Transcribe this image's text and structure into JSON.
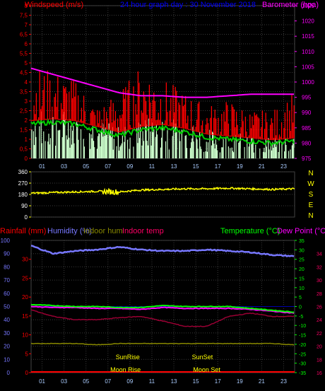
{
  "chart_data": [
    {
      "type": "line",
      "panel": "wind-barometer",
      "title": "24 hour graph day : 30 November 2018",
      "left_axis_label": "Windspeed (m/s)",
      "right_axis_label": "Barometer (hpa)",
      "x_ticks": [
        "01",
        "03",
        "05",
        "07",
        "09",
        "11",
        "13",
        "15",
        "17",
        "19",
        "21",
        "23"
      ],
      "left_ticks": [
        "0",
        "0,5",
        "1",
        "1,5",
        "2",
        "2,5",
        "3",
        "3,5",
        "4",
        "4,5",
        "5",
        "5,5",
        "6",
        "6,5",
        "7",
        "7,5",
        "8"
      ],
      "right_ticks": [
        "975",
        "980",
        "985",
        "990",
        "995",
        "1000",
        "1005",
        "1010",
        "1015",
        "1020",
        "1025"
      ],
      "left_range": [
        0,
        8
      ],
      "right_range": [
        975,
        1025
      ],
      "colors": {
        "gust": "#ff0000",
        "average": "#00cc00",
        "direction_speed": "#ccffcc",
        "barometer": "#ff00ff",
        "left_axis": "#ff0000",
        "right_axis": "#ff00ff",
        "title": "#0000ff"
      },
      "barometer": {
        "hours": [
          0,
          2,
          4,
          6,
          8,
          10,
          12,
          14,
          16,
          18,
          20,
          22,
          24
        ],
        "values": [
          1004.5,
          1002.5,
          1000.5,
          998.5,
          996.5,
          995.5,
          995.5,
          995,
          995,
          995.5,
          996,
          996,
          996
        ]
      },
      "average_wind": {
        "hours": [
          0,
          2,
          4,
          6,
          8,
          10,
          12,
          14,
          16,
          18,
          20,
          22,
          24
        ],
        "values": [
          1.8,
          1.9,
          1.8,
          1.5,
          1.2,
          1.5,
          1.6,
          1.4,
          1.1,
          1.0,
          0.9,
          0.8,
          0.9
        ]
      },
      "gust_wind": {
        "hours": [
          0,
          2,
          4,
          6,
          8,
          10,
          12,
          14,
          16,
          18,
          20,
          22,
          24
        ],
        "values": [
          3.5,
          3.3,
          3.0,
          2.0,
          2.5,
          3.5,
          3.0,
          2.5,
          2.0,
          2.2,
          1.8,
          1.8,
          2.5
        ]
      }
    },
    {
      "type": "line",
      "panel": "wind-direction",
      "left_ticks": [
        "0",
        "90",
        "180",
        "270",
        "360"
      ],
      "right_labels": [
        "N",
        "W",
        "S",
        "E",
        "N"
      ],
      "range": [
        0,
        360
      ],
      "color": "#ffff00",
      "direction": {
        "hours": [
          0,
          2,
          4,
          6,
          8,
          10,
          12,
          14,
          16,
          18,
          20,
          22,
          24
        ],
        "values": [
          190,
          195,
          200,
          205,
          200,
          215,
          220,
          225,
          225,
          230,
          225,
          220,
          225
        ]
      }
    },
    {
      "type": "line",
      "panel": "temperature-humidity-rain",
      "labels": {
        "rainfall": "Rainfall (mm)",
        "humidity": "Humidity (%)",
        "indoor_hum": "Indoor hum",
        "indoor_temp": "Indoor temp",
        "temperature": "Temperature (°C)",
        "dew_point": "Dew Point (°C)"
      },
      "x_ticks": [
        "01",
        "03",
        "05",
        "07",
        "09",
        "11",
        "13",
        "15",
        "17",
        "19",
        "21",
        "23"
      ],
      "humidity_ticks": [
        "0",
        "10",
        "20",
        "30",
        "40",
        "50",
        "60",
        "70",
        "80",
        "90",
        "100"
      ],
      "rain_ticks": [
        "0",
        "5",
        "10",
        "15",
        "20",
        "25",
        "30"
      ],
      "temp_ticks": [
        "-35",
        "-30",
        "-25",
        "-20",
        "-15",
        "-10",
        "-5",
        "0",
        "5",
        "10",
        "15",
        "20",
        "25",
        "30",
        "35"
      ],
      "indoor_temp_ticks": [
        "16",
        "18",
        "20",
        "22",
        "24",
        "26",
        "28",
        "30",
        "32",
        "34"
      ],
      "colors": {
        "rainfall": "#ff0000",
        "humidity": "#7777ff",
        "indoor_hum": "#888800",
        "indoor_temp": "#990033",
        "temperature": "#00ff00",
        "dew_point": "#ff00ff",
        "events": "#ffff00"
      },
      "humidity": {
        "hours": [
          0,
          2,
          4,
          6,
          8,
          10,
          12,
          14,
          16,
          18,
          20,
          22,
          24
        ],
        "values": [
          96,
          90,
          92,
          93,
          95,
          93,
          92,
          92,
          93,
          92,
          91,
          89,
          88
        ]
      },
      "temperature": {
        "hours": [
          0,
          2,
          4,
          6,
          8,
          10,
          12,
          14,
          16,
          18,
          20,
          22,
          24
        ],
        "values": [
          1,
          0.5,
          0,
          0,
          -0.5,
          -0.5,
          0.5,
          0,
          0,
          0,
          -1,
          -2,
          -3
        ]
      },
      "dew_point": {
        "hours": [
          0,
          2,
          4,
          6,
          8,
          10,
          12,
          14,
          16,
          18,
          20,
          22,
          24
        ],
        "values": [
          0,
          -0.5,
          -0.5,
          -1,
          -1,
          -1.5,
          -0.5,
          -1,
          -1,
          -1,
          -1.5,
          -2.5,
          -3.5
        ]
      },
      "indoor_temp": {
        "hours": [
          0,
          2,
          4,
          6,
          8,
          10,
          12,
          14,
          16,
          18,
          20,
          22,
          24
        ],
        "values": [
          25.5,
          24.5,
          24,
          24,
          24.3,
          24.5,
          23.8,
          23,
          23,
          24.5,
          25,
          24.5,
          24.5
        ]
      },
      "indoor_hum": {
        "hours": [
          0,
          2,
          4,
          6,
          8,
          10,
          12,
          14,
          16,
          18,
          20,
          22,
          24
        ],
        "values": [
          22,
          22,
          22,
          21,
          22,
          22,
          22,
          22,
          22,
          22,
          22,
          22,
          21
        ]
      },
      "rainfall": {
        "hours": [
          0,
          24
        ],
        "values": [
          0,
          0
        ]
      },
      "events": [
        {
          "label": "SunRise",
          "hour": 8.8
        },
        {
          "label": "SunSet",
          "hour": 15.6
        },
        {
          "label": "Moon Rise",
          "hour": 8.6
        },
        {
          "label": "Moon Set",
          "hour": 16.0
        }
      ]
    }
  ]
}
